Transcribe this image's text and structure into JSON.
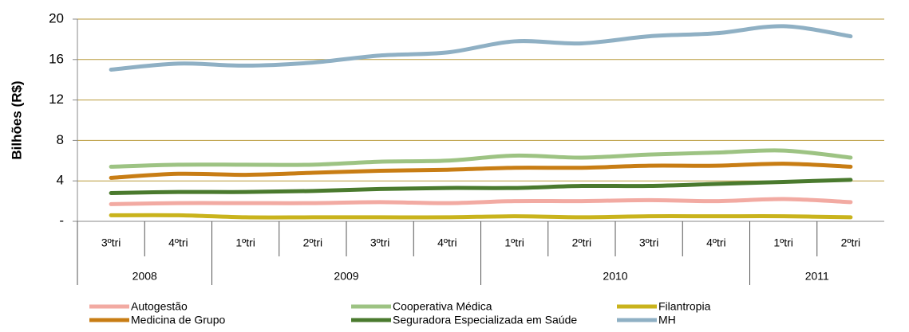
{
  "chart_data": {
    "type": "line",
    "y_label": "Bilhões (R$)",
    "categories": [
      "3ºtri",
      "4ºtri",
      "1ºtri",
      "2ºtri",
      "3ºtri",
      "4ºtri",
      "1ºtri",
      "2ºtri",
      "3ºtri",
      "4ºtri",
      "1ºtri",
      "2ºtri"
    ],
    "year_categories": [
      "2008",
      null,
      "2009",
      null,
      null,
      null,
      "2010",
      null,
      null,
      null,
      "2011",
      null
    ],
    "series": [
      {
        "name": "Autogestão",
        "color": "#f2aaa2",
        "values": [
          1.7,
          1.8,
          1.8,
          1.8,
          1.9,
          1.8,
          2.0,
          2.0,
          2.1,
          2.0,
          2.2,
          1.9
        ]
      },
      {
        "name": "Cooperativa Médica",
        "color": "#9dc383",
        "values": [
          5.4,
          5.6,
          5.6,
          5.6,
          5.9,
          6.0,
          6.5,
          6.3,
          6.6,
          6.8,
          7.0,
          6.3
        ]
      },
      {
        "name": "Filantropia",
        "color": "#c9b31c",
        "values": [
          0.6,
          0.6,
          0.4,
          0.4,
          0.4,
          0.4,
          0.5,
          0.4,
          0.5,
          0.5,
          0.5,
          0.4
        ]
      },
      {
        "name": "Medicina de Grupo",
        "color": "#c87d14",
        "values": [
          4.3,
          4.7,
          4.6,
          4.8,
          5.0,
          5.1,
          5.3,
          5.3,
          5.5,
          5.5,
          5.7,
          5.4
        ]
      },
      {
        "name": "Seguradora Especializada em Saúde",
        "color": "#4a7a2e",
        "values": [
          2.8,
          2.9,
          2.9,
          3.0,
          3.2,
          3.3,
          3.3,
          3.5,
          3.5,
          3.7,
          3.9,
          4.1
        ]
      },
      {
        "name": "MH",
        "color": "#8fb0c4",
        "values": [
          15.0,
          15.6,
          15.4,
          15.7,
          16.4,
          16.7,
          17.8,
          17.6,
          18.3,
          18.6,
          19.3,
          18.3
        ]
      }
    ],
    "ylim": [
      0,
      20
    ],
    "yticks": [
      {
        "value": 0,
        "label": "-"
      },
      4,
      8,
      12,
      16,
      20
    ],
    "grid": true
  }
}
